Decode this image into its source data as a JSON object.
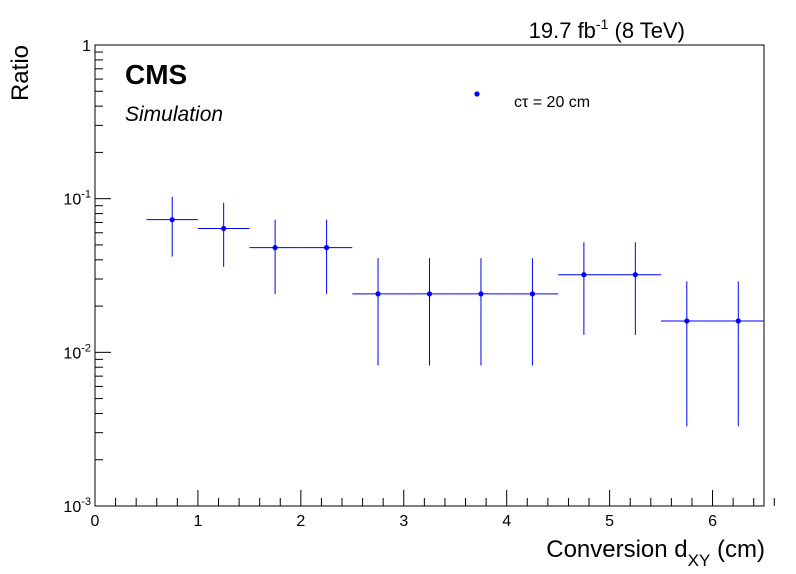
{
  "chart_data": {
    "type": "scatter",
    "lumi_main": "19.7 fb",
    "lumi_sup": "-1",
    "lumi_tail": " (8 TeV)",
    "experiment": "CMS",
    "status": "Simulation",
    "xlabel_main": "Conversion d",
    "xlabel_sub": "XY",
    "xlabel_tail": " (cm)",
    "ylabel": "Ratio",
    "xlim": [
      0,
      6.5
    ],
    "ylim": [
      0.001,
      1
    ],
    "yscale": "log",
    "x_ticks": [
      "0",
      "1",
      "2",
      "3",
      "4",
      "5",
      "6"
    ],
    "y_ticks": [
      {
        "base": "10",
        "exp": "-3"
      },
      {
        "base": "10",
        "exp": "-2"
      },
      {
        "base": "10",
        "exp": "-1"
      },
      {
        "base": "1",
        "exp": ""
      }
    ],
    "legend_location": "top-right",
    "series": [
      {
        "name": "cτ = 20 cm",
        "color": "#0000ff",
        "points": [
          {
            "x": 0.75,
            "y": 0.073,
            "xerr": 0.25,
            "ylow": 0.042,
            "yhigh": 0.103
          },
          {
            "x": 1.25,
            "y": 0.064,
            "xerr": 0.25,
            "ylow": 0.036,
            "yhigh": 0.094
          },
          {
            "x": 1.75,
            "y": 0.048,
            "xerr": 0.25,
            "ylow": 0.024,
            "yhigh": 0.073
          },
          {
            "x": 2.25,
            "y": 0.048,
            "xerr": 0.25,
            "ylow": 0.024,
            "yhigh": 0.073
          },
          {
            "x": 2.75,
            "y": 0.024,
            "xerr": 0.25,
            "ylow": 0.0082,
            "yhigh": 0.041
          },
          {
            "x": 3.25,
            "y": 0.024,
            "xerr": 0.25,
            "ylow": 0.0082,
            "yhigh": 0.041
          },
          {
            "x": 3.75,
            "y": 0.024,
            "xerr": 0.25,
            "ylow": 0.0082,
            "yhigh": 0.041
          },
          {
            "x": 4.25,
            "y": 0.024,
            "xerr": 0.25,
            "ylow": 0.0082,
            "yhigh": 0.041
          },
          {
            "x": 4.75,
            "y": 0.032,
            "xerr": 0.25,
            "ylow": 0.013,
            "yhigh": 0.052
          },
          {
            "x": 5.25,
            "y": 0.032,
            "xerr": 0.25,
            "ylow": 0.013,
            "yhigh": 0.052
          },
          {
            "x": 5.75,
            "y": 0.016,
            "xerr": 0.25,
            "ylow": 0.0033,
            "yhigh": 0.029
          },
          {
            "x": 6.25,
            "y": 0.016,
            "xerr": 0.25,
            "ylow": 0.0033,
            "yhigh": 0.029
          }
        ]
      }
    ]
  }
}
